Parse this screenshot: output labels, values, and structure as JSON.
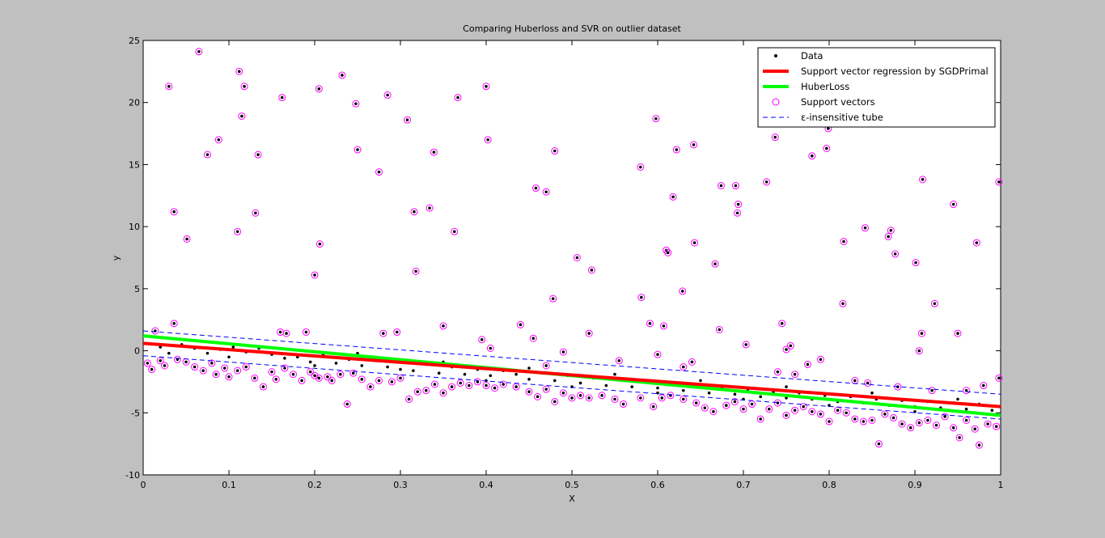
{
  "chart_data": {
    "type": "scatter",
    "title": "Comparing Huberloss and SVR on outlier dataset",
    "xlabel": "X",
    "ylabel": "y",
    "xlim": [
      0,
      1
    ],
    "ylim": [
      -10,
      25
    ],
    "xticks": [
      0,
      0.1,
      0.2,
      0.3,
      0.4,
      0.5,
      0.6,
      0.7,
      0.8,
      0.9,
      1
    ],
    "xtick_labels": [
      "0",
      "0.1",
      "0.2",
      "0.3",
      "0.4",
      "0.5",
      "0.6",
      "0.7",
      "0.8",
      "0.9",
      "1"
    ],
    "yticks": [
      -10,
      -5,
      0,
      5,
      10,
      15,
      20,
      25
    ],
    "ytick_labels": [
      "-10",
      "-5",
      "0",
      "5",
      "10",
      "15",
      "20",
      "25"
    ],
    "grid": false,
    "legend_position": "top-right",
    "legend": [
      {
        "label": "Data",
        "marker": "dot",
        "color": "#000000"
      },
      {
        "label": "Support vector regression by SGDPrimal",
        "marker": "line",
        "color": "#ff0000"
      },
      {
        "label": "HuberLoss",
        "marker": "line",
        "color": "#00ff00"
      },
      {
        "label": "Support vectors",
        "marker": "circle",
        "color": "#ff00ff"
      },
      {
        "label": "ε-insensitive tube",
        "marker": "dashed",
        "color": "#0000ff"
      }
    ],
    "lines": {
      "svr": {
        "x": [
          0,
          1
        ],
        "y": [
          0.6,
          -4.5
        ],
        "color": "#ff0000"
      },
      "huber": {
        "x": [
          0,
          1
        ],
        "y": [
          1.2,
          -5.2
        ],
        "color": "#00ff00"
      },
      "tube_upper": {
        "x": [
          0,
          1
        ],
        "y": [
          1.6,
          -3.5
        ],
        "color": "#0000ff"
      },
      "tube_lower": {
        "x": [
          0,
          1
        ],
        "y": [
          -0.4,
          -5.5
        ],
        "color": "#0000ff"
      }
    },
    "outliers": [
      [
        0.03,
        21.3
      ],
      [
        0.065,
        24.1
      ],
      [
        0.112,
        22.5
      ],
      [
        0.118,
        21.3
      ],
      [
        0.205,
        21.1
      ],
      [
        0.232,
        22.2
      ],
      [
        0.285,
        20.6
      ],
      [
        0.4,
        21.3
      ],
      [
        0.162,
        20.4
      ],
      [
        0.367,
        20.4
      ],
      [
        0.115,
        18.9
      ],
      [
        0.248,
        19.9
      ],
      [
        0.308,
        18.6
      ],
      [
        0.088,
        17.0
      ],
      [
        0.075,
        15.8
      ],
      [
        0.134,
        15.8
      ],
      [
        0.25,
        16.2
      ],
      [
        0.339,
        16.0
      ],
      [
        0.402,
        17.0
      ],
      [
        0.48,
        16.1
      ],
      [
        0.275,
        14.4
      ],
      [
        0.036,
        11.2
      ],
      [
        0.131,
        11.1
      ],
      [
        0.316,
        11.2
      ],
      [
        0.334,
        11.5
      ],
      [
        0.051,
        9.0
      ],
      [
        0.11,
        9.6
      ],
      [
        0.206,
        8.6
      ],
      [
        0.363,
        9.6
      ],
      [
        0.458,
        13.1
      ],
      [
        0.47,
        12.8
      ],
      [
        0.2,
        6.1
      ],
      [
        0.318,
        6.4
      ],
      [
        0.478,
        4.2
      ],
      [
        0.506,
        7.5
      ],
      [
        0.523,
        6.5
      ],
      [
        0.598,
        18.7
      ],
      [
        0.58,
        14.8
      ],
      [
        0.622,
        16.2
      ],
      [
        0.642,
        16.6
      ],
      [
        0.618,
        12.4
      ],
      [
        0.674,
        13.3
      ],
      [
        0.691,
        13.3
      ],
      [
        0.727,
        13.6
      ],
      [
        0.737,
        17.2
      ],
      [
        0.78,
        15.7
      ],
      [
        0.797,
        16.3
      ],
      [
        0.799,
        17.9
      ],
      [
        0.643,
        8.7
      ],
      [
        0.61,
        8.1
      ],
      [
        0.612,
        7.9
      ],
      [
        0.667,
        7.0
      ],
      [
        0.693,
        11.1
      ],
      [
        0.694,
        11.8
      ],
      [
        0.629,
        4.8
      ],
      [
        0.581,
        4.3
      ],
      [
        0.591,
        2.2
      ],
      [
        0.607,
        2.0
      ],
      [
        0.672,
        1.7
      ],
      [
        0.703,
        0.5
      ],
      [
        0.745,
        2.2
      ],
      [
        0.75,
        0.1
      ],
      [
        0.755,
        0.4
      ],
      [
        0.817,
        8.8
      ],
      [
        0.842,
        9.9
      ],
      [
        0.869,
        9.2
      ],
      [
        0.872,
        9.7
      ],
      [
        0.877,
        7.8
      ],
      [
        0.901,
        7.1
      ],
      [
        0.909,
        13.8
      ],
      [
        0.945,
        11.8
      ],
      [
        0.972,
        8.7
      ],
      [
        0.998,
        13.6
      ],
      [
        0.816,
        3.8
      ],
      [
        0.923,
        3.8
      ],
      [
        0.905,
        0.0
      ],
      [
        0.908,
        1.4
      ],
      [
        0.95,
        1.4
      ],
      [
        0.014,
        1.6
      ],
      [
        0.036,
        2.2
      ],
      [
        0.19,
        1.5
      ],
      [
        0.167,
        1.4
      ],
      [
        0.16,
        1.5
      ],
      [
        0.28,
        1.4
      ],
      [
        0.296,
        1.5
      ],
      [
        0.35,
        2.0
      ],
      [
        0.395,
        0.9
      ],
      [
        0.405,
        0.2
      ],
      [
        0.44,
        2.1
      ],
      [
        0.455,
        1.0
      ],
      [
        0.49,
        -0.1
      ],
      [
        0.52,
        1.4
      ]
    ],
    "support_vectors": [
      [
        0.005,
        -1.0
      ],
      [
        0.01,
        -1.5
      ],
      [
        0.02,
        -0.8
      ],
      [
        0.025,
        -1.2
      ],
      [
        0.04,
        -0.7
      ],
      [
        0.05,
        -0.9
      ],
      [
        0.06,
        -1.3
      ],
      [
        0.07,
        -1.6
      ],
      [
        0.08,
        -1.0
      ],
      [
        0.085,
        -1.9
      ],
      [
        0.095,
        -1.4
      ],
      [
        0.1,
        -2.1
      ],
      [
        0.11,
        -1.6
      ],
      [
        0.12,
        -1.3
      ],
      [
        0.13,
        -2.2
      ],
      [
        0.14,
        -2.9
      ],
      [
        0.15,
        -1.7
      ],
      [
        0.155,
        -2.3
      ],
      [
        0.165,
        -1.4
      ],
      [
        0.175,
        -1.9
      ],
      [
        0.185,
        -2.4
      ],
      [
        0.195,
        -1.7
      ],
      [
        0.2,
        -2.0
      ],
      [
        0.205,
        -2.2
      ],
      [
        0.215,
        -2.1
      ],
      [
        0.22,
        -2.4
      ],
      [
        0.23,
        -1.9
      ],
      [
        0.238,
        -4.3
      ],
      [
        0.245,
        -1.8
      ],
      [
        0.255,
        -2.3
      ],
      [
        0.265,
        -2.9
      ],
      [
        0.275,
        -2.4
      ],
      [
        0.29,
        -2.5
      ],
      [
        0.3,
        -2.2
      ],
      [
        0.31,
        -3.9
      ],
      [
        0.32,
        -3.3
      ],
      [
        0.33,
        -3.2
      ],
      [
        0.34,
        -2.7
      ],
      [
        0.35,
        -3.4
      ],
      [
        0.36,
        -2.9
      ],
      [
        0.37,
        -2.6
      ],
      [
        0.38,
        -2.8
      ],
      [
        0.39,
        -2.5
      ],
      [
        0.4,
        -2.8
      ],
      [
        0.41,
        -3.0
      ],
      [
        0.42,
        -2.7
      ],
      [
        0.435,
        -2.9
      ],
      [
        0.45,
        -3.3
      ],
      [
        0.46,
        -3.7
      ],
      [
        0.47,
        -3.1
      ],
      [
        0.48,
        -4.1
      ],
      [
        0.49,
        -3.4
      ],
      [
        0.5,
        -3.8
      ],
      [
        0.51,
        -3.6
      ],
      [
        0.52,
        -3.8
      ],
      [
        0.535,
        -3.6
      ],
      [
        0.55,
        -3.9
      ],
      [
        0.56,
        -4.3
      ],
      [
        0.58,
        -3.8
      ],
      [
        0.595,
        -4.5
      ],
      [
        0.605,
        -3.8
      ],
      [
        0.615,
        -3.6
      ],
      [
        0.63,
        -3.9
      ],
      [
        0.645,
        -4.2
      ],
      [
        0.655,
        -4.6
      ],
      [
        0.665,
        -4.9
      ],
      [
        0.68,
        -4.4
      ],
      [
        0.69,
        -4.1
      ],
      [
        0.7,
        -4.7
      ],
      [
        0.71,
        -4.3
      ],
      [
        0.72,
        -5.5
      ],
      [
        0.73,
        -4.7
      ],
      [
        0.74,
        -4.2
      ],
      [
        0.75,
        -5.2
      ],
      [
        0.76,
        -4.8
      ],
      [
        0.77,
        -4.5
      ],
      [
        0.78,
        -4.9
      ],
      [
        0.79,
        -5.1
      ],
      [
        0.8,
        -5.7
      ],
      [
        0.81,
        -4.8
      ],
      [
        0.82,
        -5.0
      ],
      [
        0.83,
        -5.5
      ],
      [
        0.84,
        -5.7
      ],
      [
        0.85,
        -5.6
      ],
      [
        0.858,
        -7.5
      ],
      [
        0.865,
        -5.1
      ],
      [
        0.875,
        -5.4
      ],
      [
        0.885,
        -5.9
      ],
      [
        0.895,
        -6.2
      ],
      [
        0.905,
        -5.8
      ],
      [
        0.915,
        -5.6
      ],
      [
        0.925,
        -6.0
      ],
      [
        0.935,
        -5.3
      ],
      [
        0.945,
        -6.2
      ],
      [
        0.952,
        -7.0
      ],
      [
        0.96,
        -5.6
      ],
      [
        0.97,
        -6.3
      ],
      [
        0.975,
        -7.6
      ],
      [
        0.985,
        -5.9
      ],
      [
        0.995,
        -6.1
      ],
      [
        0.6,
        -0.3
      ],
      [
        0.63,
        -1.3
      ],
      [
        0.64,
        -0.9
      ],
      [
        0.74,
        -1.7
      ],
      [
        0.76,
        -1.9
      ],
      [
        0.775,
        -1.1
      ],
      [
        0.79,
        -0.7
      ],
      [
        0.83,
        -2.4
      ],
      [
        0.845,
        -2.6
      ],
      [
        0.88,
        -2.9
      ],
      [
        0.92,
        -3.2
      ],
      [
        0.96,
        -3.2
      ],
      [
        0.98,
        -2.8
      ],
      [
        0.998,
        -2.2
      ],
      [
        0.555,
        -0.8
      ],
      [
        0.47,
        -1.2
      ]
    ],
    "inliers": [
      [
        0.02,
        0.3
      ],
      [
        0.03,
        -0.2
      ],
      [
        0.045,
        0.5
      ],
      [
        0.06,
        0.2
      ],
      [
        0.075,
        -0.2
      ],
      [
        0.09,
        0.1
      ],
      [
        0.105,
        0.3
      ],
      [
        0.12,
        -0.1
      ],
      [
        0.135,
        0.2
      ],
      [
        0.15,
        -0.3
      ],
      [
        0.165,
        -0.6
      ],
      [
        0.18,
        -0.5
      ],
      [
        0.195,
        -0.9
      ],
      [
        0.21,
        -0.3
      ],
      [
        0.225,
        -1.0
      ],
      [
        0.24,
        -0.7
      ],
      [
        0.255,
        -1.2
      ],
      [
        0.27,
        -0.8
      ],
      [
        0.285,
        -1.3
      ],
      [
        0.3,
        -0.9
      ],
      [
        0.315,
        -1.6
      ],
      [
        0.33,
        -1.1
      ],
      [
        0.345,
        -1.8
      ],
      [
        0.36,
        -1.3
      ],
      [
        0.375,
        -1.9
      ],
      [
        0.39,
        -1.5
      ],
      [
        0.405,
        -2.0
      ],
      [
        0.42,
        -1.6
      ],
      [
        0.435,
        -1.9
      ],
      [
        0.45,
        -2.3
      ],
      [
        0.465,
        -1.8
      ],
      [
        0.48,
        -2.4
      ],
      [
        0.495,
        -2.0
      ],
      [
        0.51,
        -2.6
      ],
      [
        0.525,
        -2.2
      ],
      [
        0.54,
        -2.8
      ],
      [
        0.555,
        -2.3
      ],
      [
        0.57,
        -2.9
      ],
      [
        0.585,
        -2.5
      ],
      [
        0.6,
        -3.0
      ],
      [
        0.615,
        -2.6
      ],
      [
        0.63,
        -3.2
      ],
      [
        0.645,
        -2.8
      ],
      [
        0.66,
        -3.4
      ],
      [
        0.675,
        -3.0
      ],
      [
        0.69,
        -3.5
      ],
      [
        0.705,
        -3.1
      ],
      [
        0.72,
        -3.7
      ],
      [
        0.735,
        -3.3
      ],
      [
        0.75,
        -3.8
      ],
      [
        0.765,
        -3.4
      ],
      [
        0.78,
        -3.9
      ],
      [
        0.795,
        -3.6
      ],
      [
        0.81,
        -4.1
      ],
      [
        0.825,
        -3.7
      ],
      [
        0.84,
        -4.2
      ],
      [
        0.855,
        -3.9
      ],
      [
        0.87,
        -4.4
      ],
      [
        0.885,
        -4.0
      ],
      [
        0.9,
        -4.5
      ],
      [
        0.915,
        -4.1
      ],
      [
        0.93,
        -4.6
      ],
      [
        0.945,
        -4.2
      ],
      [
        0.96,
        -4.7
      ],
      [
        0.975,
        -4.3
      ],
      [
        0.99,
        -4.8
      ],
      [
        0.1,
        -0.5
      ],
      [
        0.2,
        -1.2
      ],
      [
        0.3,
        -1.5
      ],
      [
        0.4,
        -2.4
      ],
      [
        0.5,
        -2.9
      ],
      [
        0.6,
        -3.4
      ],
      [
        0.7,
        -3.9
      ],
      [
        0.8,
        -4.4
      ],
      [
        0.9,
        -4.9
      ],
      [
        0.25,
        -0.2
      ],
      [
        0.35,
        -0.9
      ],
      [
        0.45,
        -1.4
      ],
      [
        0.55,
        -1.9
      ],
      [
        0.65,
        -2.4
      ],
      [
        0.75,
        -2.9
      ],
      [
        0.85,
        -3.4
      ],
      [
        0.95,
        -3.9
      ]
    ]
  }
}
